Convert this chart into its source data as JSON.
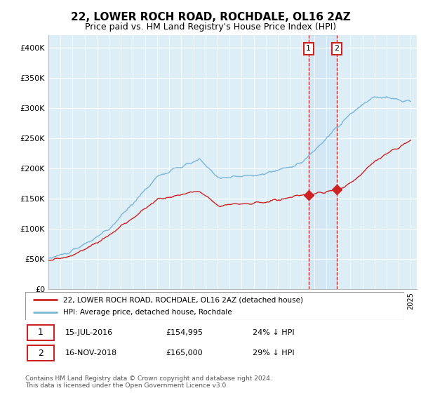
{
  "title": "22, LOWER ROCH ROAD, ROCHDALE, OL16 2AZ",
  "subtitle": "Price paid vs. HM Land Registry's House Price Index (HPI)",
  "legend_line1": "22, LOWER ROCH ROAD, ROCHDALE, OL16 2AZ (detached house)",
  "legend_line2": "HPI: Average price, detached house, Rochdale",
  "footnote": "Contains HM Land Registry data © Crown copyright and database right 2024.\nThis data is licensed under the Open Government Licence v3.0.",
  "transaction1_date": "15-JUL-2016",
  "transaction1_price": "£154,995",
  "transaction1_hpi": "24% ↓ HPI",
  "transaction2_date": "16-NOV-2018",
  "transaction2_price": "£165,000",
  "transaction2_hpi": "29% ↓ HPI",
  "hpi_color": "#7ab5d8",
  "price_color": "#cc2222",
  "vline_color": "#cc2222",
  "background_color": "#ddeef6",
  "grid_color": "#ffffff",
  "ylim": [
    0,
    420000
  ],
  "yticks": [
    0,
    50000,
    100000,
    150000,
    200000,
    250000,
    300000,
    350000,
    400000
  ],
  "ytick_labels": [
    "£0",
    "£50K",
    "£100K",
    "£150K",
    "£200K",
    "£250K",
    "£300K",
    "£350K",
    "£400K"
  ],
  "xlim_start": 1995.0,
  "xlim_end": 2025.5,
  "transaction1_year": 2016.54,
  "transaction2_year": 2018.88,
  "transaction1_price_val": 154995,
  "transaction2_price_val": 165000
}
